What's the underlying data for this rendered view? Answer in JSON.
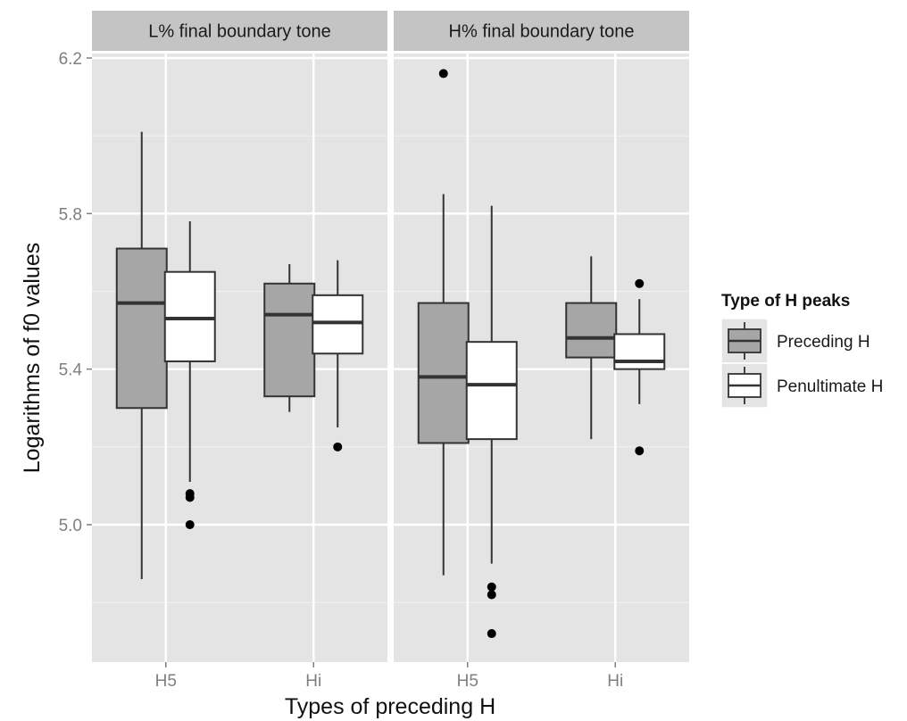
{
  "chart_data": {
    "type": "boxplot",
    "xlabel": "Types of preceding H",
    "ylabel": "Logarithms of f0 values",
    "ylim": [
      4.7,
      6.22
    ],
    "y_ticks": [
      5.0,
      5.4,
      5.8,
      6.2
    ],
    "y_tick_labels": [
      "5.0",
      "5.4",
      "5.8",
      "6.2"
    ],
    "categories": [
      "H5",
      "Hi"
    ],
    "grid": true,
    "legend": {
      "title": "Type of H peaks",
      "position": "right",
      "entries": [
        {
          "name": "Preceding H",
          "color": "#a6a6a6"
        },
        {
          "name": "Penultimate H",
          "color": "#ffffff"
        }
      ]
    },
    "panels": [
      {
        "title": "L% final boundary tone",
        "groups": [
          {
            "category": "H5",
            "series": "Preceding H",
            "min": 4.86,
            "q1": 5.3,
            "median": 5.57,
            "q3": 5.71,
            "max": 6.01,
            "outliers": []
          },
          {
            "category": "H5",
            "series": "Penultimate H",
            "min": 5.11,
            "q1": 5.42,
            "median": 5.53,
            "q3": 5.65,
            "max": 5.78,
            "outliers": [
              5.07,
              5.08,
              5.0
            ]
          },
          {
            "category": "Hi",
            "series": "Preceding H",
            "min": 5.29,
            "q1": 5.33,
            "median": 5.54,
            "q3": 5.62,
            "max": 5.67,
            "outliers": []
          },
          {
            "category": "Hi",
            "series": "Penultimate H",
            "min": 5.25,
            "q1": 5.44,
            "median": 5.52,
            "q3": 5.59,
            "max": 5.68,
            "outliers": [
              5.2
            ]
          }
        ]
      },
      {
        "title": "H% final boundary tone",
        "groups": [
          {
            "category": "H5",
            "series": "Preceding H",
            "min": 4.87,
            "q1": 5.21,
            "median": 5.38,
            "q3": 5.57,
            "max": 5.85,
            "outliers": [
              6.16
            ]
          },
          {
            "category": "H5",
            "series": "Penultimate H",
            "min": 4.9,
            "q1": 5.22,
            "median": 5.36,
            "q3": 5.47,
            "max": 5.82,
            "outliers": [
              4.84,
              4.82,
              4.72
            ]
          },
          {
            "category": "Hi",
            "series": "Preceding H",
            "min": 5.22,
            "q1": 5.43,
            "median": 5.48,
            "q3": 5.57,
            "max": 5.69,
            "outliers": []
          },
          {
            "category": "Hi",
            "series": "Penultimate H",
            "min": 5.31,
            "q1": 5.4,
            "median": 5.42,
            "q3": 5.49,
            "max": 5.58,
            "outliers": [
              5.62,
              5.19
            ]
          }
        ]
      }
    ]
  }
}
